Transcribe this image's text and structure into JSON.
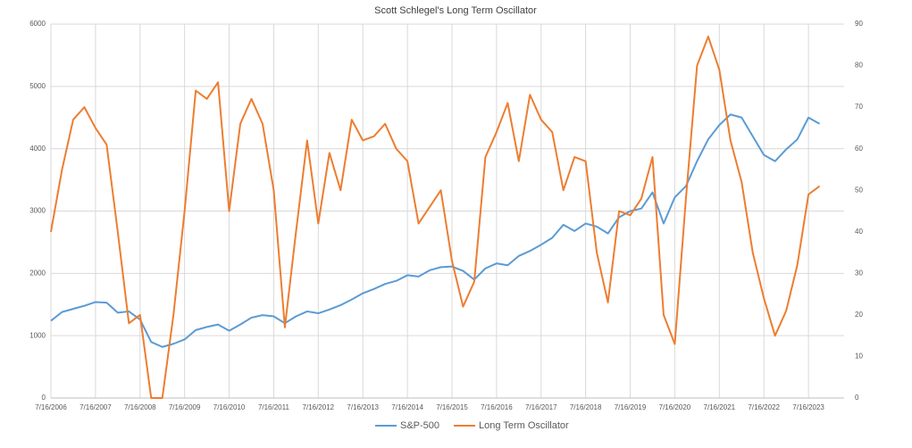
{
  "chart_data": {
    "type": "line",
    "title": "Scott Schlegel's Long Term Oscillator",
    "x": [
      2006.54,
      2006.79,
      2007.04,
      2007.29,
      2007.54,
      2007.79,
      2008.04,
      2008.29,
      2008.54,
      2008.79,
      2009.04,
      2009.29,
      2009.54,
      2009.79,
      2010.04,
      2010.29,
      2010.54,
      2010.79,
      2011.04,
      2011.29,
      2011.54,
      2011.79,
      2012.04,
      2012.29,
      2012.54,
      2012.79,
      2013.04,
      2013.29,
      2013.54,
      2013.79,
      2014.04,
      2014.29,
      2014.54,
      2014.79,
      2015.04,
      2015.29,
      2015.54,
      2015.79,
      2016.04,
      2016.29,
      2016.54,
      2016.79,
      2017.04,
      2017.29,
      2017.54,
      2017.79,
      2018.04,
      2018.29,
      2018.54,
      2018.79,
      2019.04,
      2019.29,
      2019.54,
      2019.79,
      2020.04,
      2020.29,
      2020.54,
      2020.79,
      2021.04,
      2021.29,
      2021.54,
      2021.79,
      2022.04,
      2022.29,
      2022.54,
      2022.79,
      2023.04,
      2023.29,
      2023.54,
      2023.79
    ],
    "series": [
      {
        "name": "S&P-500",
        "color": "#5b9bd5",
        "values": [
          1240,
          1380,
          1430,
          1480,
          1540,
          1530,
          1370,
          1390,
          1260,
          900,
          820,
          870,
          940,
          1090,
          1140,
          1180,
          1080,
          1180,
          1290,
          1330,
          1310,
          1200,
          1310,
          1390,
          1360,
          1420,
          1490,
          1580,
          1680,
          1750,
          1830,
          1880,
          1970,
          1950,
          2050,
          2100,
          2110,
          2040,
          1900,
          2080,
          2160,
          2130,
          2280,
          2360,
          2460,
          2570,
          2780,
          2680,
          2800,
          2750,
          2640,
          2900,
          3000,
          3040,
          3300,
          2800,
          3220,
          3400,
          3800,
          4150,
          4380,
          4550,
          4500,
          4200,
          3900,
          3800,
          3990,
          4150,
          4500,
          4400
        ]
      },
      {
        "name": "Long Term Oscillator",
        "color": "#ed7d31",
        "axis": "y2",
        "values": [
          40,
          55,
          67,
          70,
          65,
          61,
          40,
          18,
          20,
          0,
          0,
          20,
          45,
          74,
          72,
          76,
          45,
          66,
          72,
          66,
          50,
          17,
          40,
          62,
          42,
          59,
          50,
          67,
          62,
          63,
          66,
          60,
          57,
          42,
          46,
          50,
          33,
          22,
          28,
          58,
          64,
          71,
          57,
          73,
          67,
          64,
          50,
          58,
          57,
          35,
          23,
          45,
          44,
          48,
          58,
          20,
          13,
          48,
          80,
          87,
          79,
          62,
          52,
          35,
          24,
          15,
          21,
          32,
          49,
          51
        ]
      }
    ],
    "xlim": [
      2006.54,
      2024.34
    ],
    "xticks": [
      {
        "value": 2006.54,
        "label": "7/16/2006"
      },
      {
        "value": 2007.54,
        "label": "7/16/2007"
      },
      {
        "value": 2008.54,
        "label": "7/16/2008"
      },
      {
        "value": 2009.54,
        "label": "7/16/2009"
      },
      {
        "value": 2010.54,
        "label": "7/16/2010"
      },
      {
        "value": 2011.54,
        "label": "7/16/2011"
      },
      {
        "value": 2012.54,
        "label": "7/16/2012"
      },
      {
        "value": 2013.54,
        "label": "7/16/2013"
      },
      {
        "value": 2014.54,
        "label": "7/16/2014"
      },
      {
        "value": 2015.54,
        "label": "7/16/2015"
      },
      {
        "value": 2016.54,
        "label": "7/16/2016"
      },
      {
        "value": 2017.54,
        "label": "7/16/2017"
      },
      {
        "value": 2018.54,
        "label": "7/16/2018"
      },
      {
        "value": 2019.54,
        "label": "7/16/2019"
      },
      {
        "value": 2020.54,
        "label": "7/16/2020"
      },
      {
        "value": 2021.54,
        "label": "7/16/2021"
      },
      {
        "value": 2022.54,
        "label": "7/16/2022"
      },
      {
        "value": 2023.54,
        "label": "7/16/2023"
      }
    ],
    "ylim": [
      0,
      6000
    ],
    "yticks": [
      0,
      1000,
      2000,
      3000,
      4000,
      5000,
      6000
    ],
    "y2lim": [
      0,
      90
    ],
    "y2ticks": [
      0,
      10,
      20,
      30,
      40,
      50,
      60,
      70,
      80,
      90
    ],
    "grid": true,
    "legend": "bottom"
  }
}
